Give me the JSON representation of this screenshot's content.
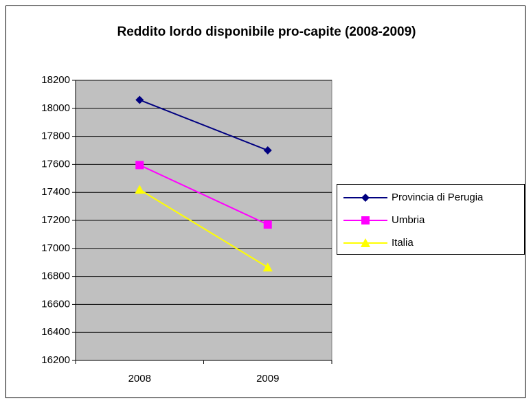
{
  "chart_data": {
    "type": "line",
    "title": "Reddito lordo disponibile pro-capite (2008-2009)",
    "categories": [
      "2008",
      "2009"
    ],
    "series": [
      {
        "name": "Provincia di Perugia",
        "color": "#000080",
        "marker": "diamond",
        "values": [
          18060,
          17700
        ]
      },
      {
        "name": "Umbria",
        "color": "#ff00ff",
        "marker": "square",
        "values": [
          17595,
          17170
        ]
      },
      {
        "name": "Italia",
        "color": "#ffff00",
        "marker": "triangle",
        "values": [
          17420,
          16865
        ]
      }
    ],
    "ylim": [
      16200,
      18200
    ],
    "yticks": [
      16200,
      16400,
      16600,
      16800,
      17000,
      17200,
      17400,
      17600,
      17800,
      18000,
      18200
    ],
    "grid": true,
    "legend": "right"
  }
}
